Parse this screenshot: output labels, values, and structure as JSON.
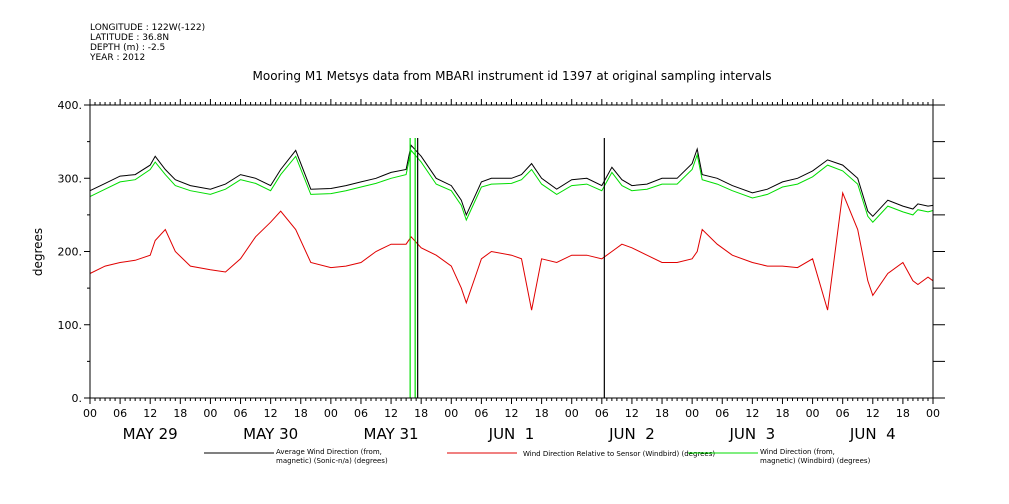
{
  "metadata": {
    "longitude": "LONGITUDE : 122W(-122)",
    "latitude": "LATITUDE : 36.8N",
    "depth": "DEPTH (m) : -2.5",
    "year": "YEAR : 2012"
  },
  "chart_data": {
    "type": "line",
    "title": "Mooring M1 Metsys data from MBARI instrument id 1397 at original sampling intervals",
    "ylabel": "degrees",
    "xlabel": "",
    "ylim": [
      0,
      400
    ],
    "yticks": [
      0,
      100,
      200,
      300,
      400
    ],
    "ytick_labels": [
      "0.",
      "100.",
      "200.",
      "300.",
      "400."
    ],
    "xlim_hours": [
      0,
      168
    ],
    "xtick_labels": [
      "00",
      "06",
      "12",
      "18",
      "00",
      "06",
      "12",
      "18",
      "00",
      "06",
      "12",
      "18",
      "00",
      "06",
      "12",
      "18",
      "00",
      "06",
      "12",
      "18",
      "00",
      "06",
      "12",
      "18",
      "00",
      "06",
      "12",
      "18",
      "00"
    ],
    "day_labels": [
      "MAY 29",
      "MAY 30",
      "MAY 31",
      "JUN  1",
      "JUN  2",
      "JUN  3",
      "JUN  4"
    ],
    "grid": false,
    "legend_position": "bottom",
    "x_hours": [
      0,
      3,
      6,
      9,
      12,
      13,
      15,
      17,
      20,
      24,
      27,
      30,
      33,
      36,
      38,
      41,
      44,
      48,
      51,
      54,
      57,
      60,
      63,
      64,
      66,
      69,
      72,
      74,
      75,
      77,
      78,
      80,
      84,
      86,
      88,
      90,
      93,
      96,
      99,
      102,
      104,
      106,
      108,
      111,
      114,
      117,
      120,
      121,
      122,
      125,
      128,
      132,
      135,
      138,
      141,
      144,
      147,
      150,
      153,
      155,
      156,
      159,
      162,
      164,
      165,
      167,
      168
    ],
    "series": [
      {
        "name": "Average Wind Direction (from, magnetic) (Sonic-n/a) (degrees)",
        "color": "#000000",
        "values": [
          283,
          293,
          303,
          305,
          318,
          330,
          312,
          298,
          290,
          285,
          292,
          305,
          300,
          290,
          312,
          338,
          285,
          286,
          290,
          295,
          300,
          308,
          312,
          345,
          330,
          300,
          290,
          270,
          250,
          280,
          295,
          300,
          300,
          305,
          320,
          300,
          285,
          298,
          300,
          290,
          315,
          298,
          290,
          292,
          300,
          300,
          320,
          340,
          305,
          300,
          290,
          280,
          285,
          295,
          300,
          310,
          325,
          318,
          300,
          255,
          248,
          270,
          262,
          258,
          265,
          262,
          263
        ]
      },
      {
        "name": "Wind Direction Relative to Sensor (Windbird) (degrees)",
        "color": "#e00000",
        "values": [
          170,
          180,
          185,
          188,
          195,
          215,
          230,
          200,
          180,
          175,
          172,
          190,
          220,
          240,
          255,
          230,
          185,
          178,
          180,
          185,
          200,
          210,
          210,
          220,
          205,
          195,
          180,
          150,
          130,
          170,
          190,
          200,
          195,
          190,
          120,
          190,
          185,
          195,
          195,
          190,
          200,
          210,
          205,
          195,
          185,
          185,
          190,
          200,
          230,
          210,
          195,
          185,
          180,
          180,
          178,
          190,
          120,
          280,
          230,
          160,
          140,
          170,
          185,
          160,
          155,
          165,
          160
        ]
      },
      {
        "name": "Wind Direction (from, magnetic) (Windbird) (degrees)",
        "color": "#00dd00",
        "values": [
          275,
          285,
          295,
          298,
          312,
          322,
          305,
          290,
          283,
          278,
          285,
          298,
          293,
          283,
          305,
          330,
          278,
          279,
          283,
          288,
          293,
          300,
          305,
          338,
          322,
          292,
          283,
          263,
          243,
          273,
          288,
          292,
          293,
          298,
          312,
          292,
          278,
          290,
          292,
          283,
          308,
          290,
          283,
          285,
          292,
          292,
          312,
          332,
          298,
          292,
          283,
          273,
          278,
          288,
          292,
          302,
          318,
          310,
          292,
          248,
          240,
          262,
          254,
          250,
          257,
          254,
          256
        ]
      }
    ],
    "spikes": [
      {
        "series": 2,
        "hour": 63.8,
        "low": 0
      },
      {
        "series": 2,
        "hour": 64.8,
        "low": 0
      },
      {
        "series": 0,
        "hour": 65.3,
        "low": 0
      },
      {
        "series": 0,
        "hour": 102.5,
        "low": 0
      }
    ]
  },
  "legend": [
    {
      "line1": "Average Wind Direction (from,",
      "line2": "magnetic) (Sonic-n/a) (degrees)",
      "color": "#000000"
    },
    {
      "line1": "Wind Direction Relative to Sensor (Windbird) (degrees)",
      "line2": "",
      "color": "#e00000"
    },
    {
      "line1": "Wind Direction (from,",
      "line2": "magnetic) (Windbird) (degrees)",
      "color": "#00dd00"
    }
  ]
}
